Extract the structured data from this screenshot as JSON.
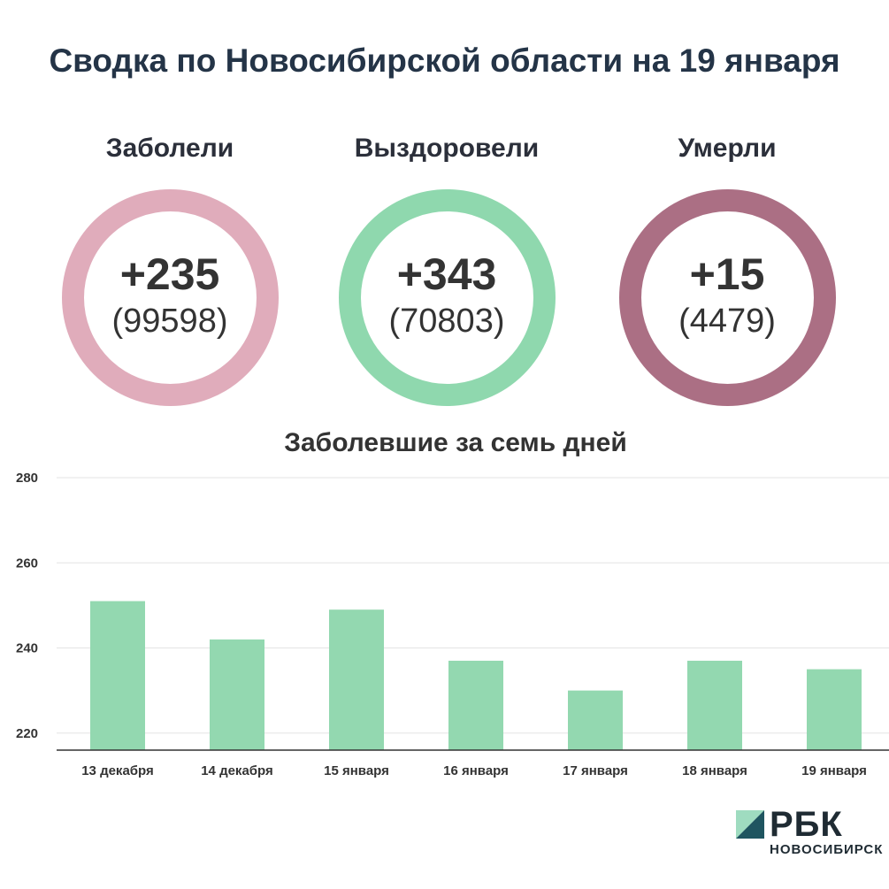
{
  "header": {
    "title": "Сводка по Новосибирской области на 19 января"
  },
  "stats": [
    {
      "label": "Заболели",
      "delta": "+235",
      "total": "(99598)",
      "color": "#e0acbb"
    },
    {
      "label": "Выздоровели",
      "delta": "+343",
      "total": "(70803)",
      "color": "#8fd8ae"
    },
    {
      "label": "Умерли",
      "delta": "+15",
      "total": "(4479)",
      "color": "#ab6f84"
    }
  ],
  "chart_data": {
    "type": "bar",
    "title": "Заболевшие за семь дней",
    "categories": [
      "13 декабря",
      "14 декабря",
      "15 января",
      "16 января",
      "17 января",
      "18 января",
      "19 января"
    ],
    "values": [
      251,
      242,
      249,
      237,
      230,
      237,
      235
    ],
    "ylim": [
      216,
      280
    ],
    "yticks": [
      220,
      240,
      260,
      280
    ],
    "bar_color": "#93d8b0",
    "grid": true
  },
  "logo": {
    "text": "РБК",
    "subtitle": "НОВОСИБИРСК",
    "icon": "rbc-logo-icon",
    "colors": {
      "light": "#9fdcc0",
      "dark": "#1f5560"
    }
  }
}
